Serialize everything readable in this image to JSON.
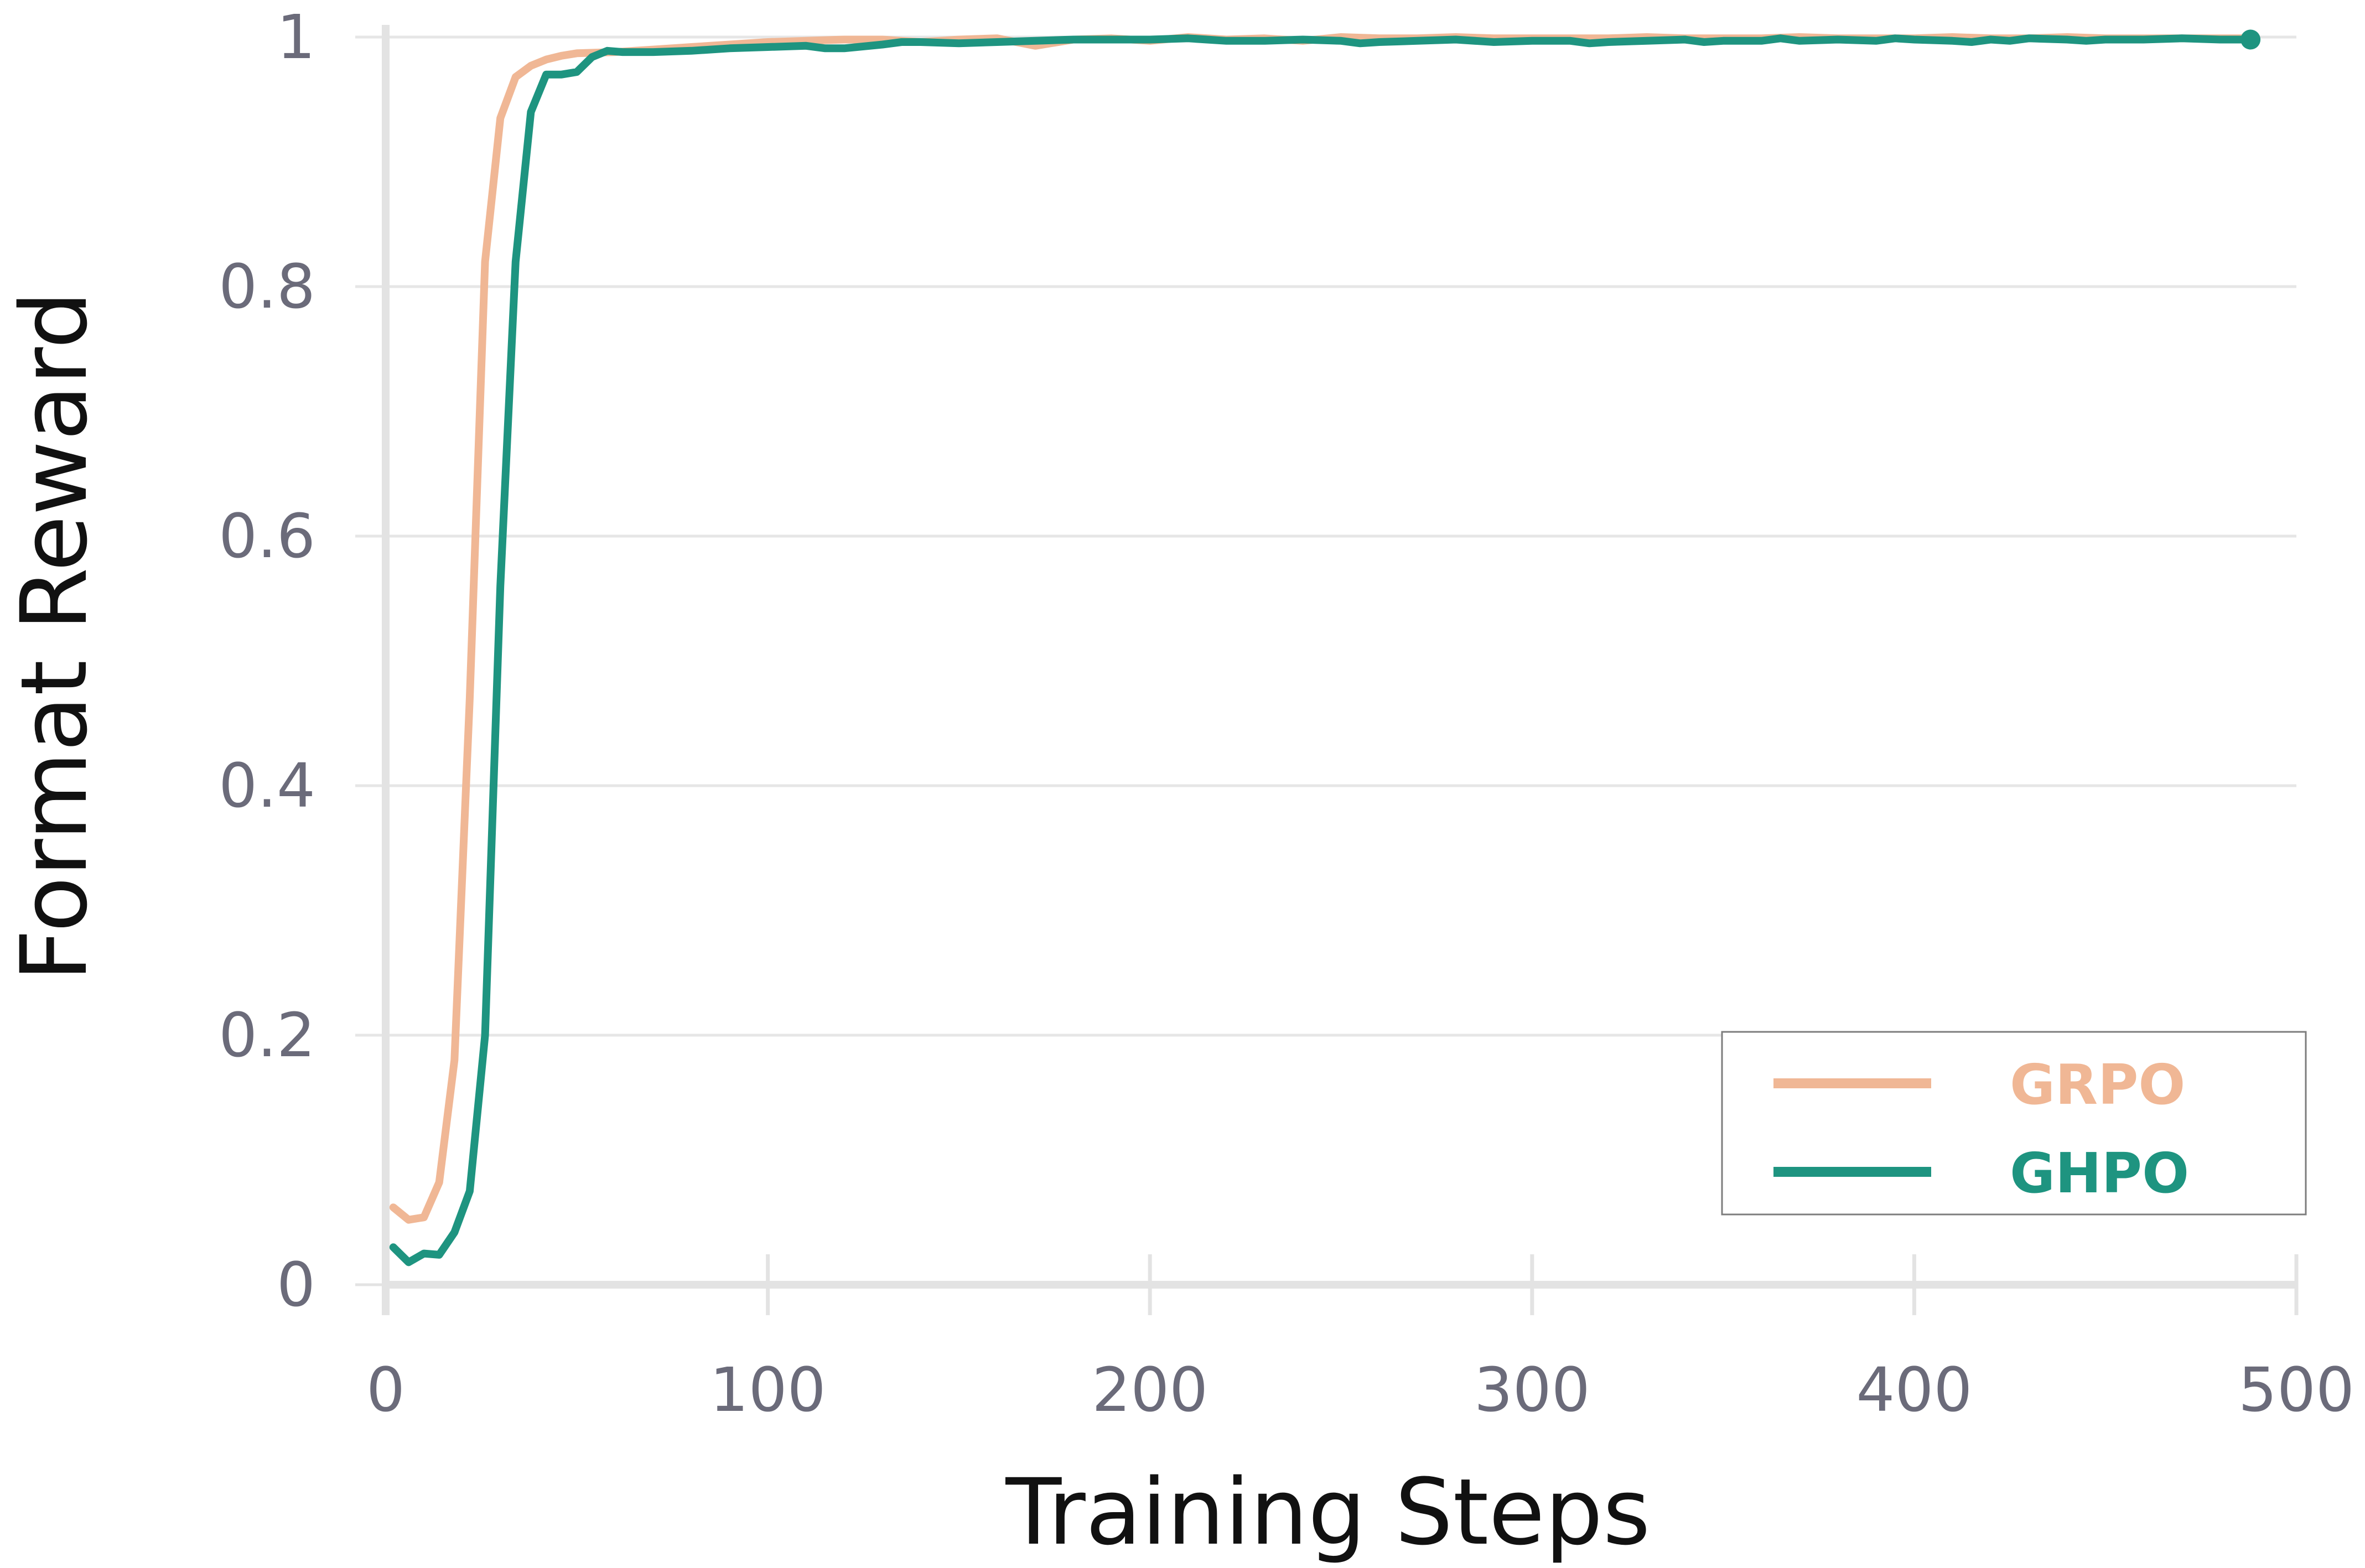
{
  "chart_data": {
    "type": "line",
    "title": "",
    "xlabel": "Training Steps",
    "ylabel": "Format Reward",
    "xlim": [
      0,
      500
    ],
    "ylim": [
      0,
      1
    ],
    "x_ticks": [
      "0",
      "100",
      "200",
      "300",
      "400",
      "500"
    ],
    "y_ticks": [
      "0",
      "0.2",
      "0.4",
      "0.6",
      "0.8",
      "1"
    ],
    "grid": "horizontal",
    "legend_position": "bottom-right",
    "series": [
      {
        "name": "GRPO",
        "color": "#F0B795",
        "points": [
          [
            2,
            0.062
          ],
          [
            6,
            0.052
          ],
          [
            10,
            0.054
          ],
          [
            14,
            0.082
          ],
          [
            18,
            0.18
          ],
          [
            22,
            0.47
          ],
          [
            26,
            0.82
          ],
          [
            30,
            0.935
          ],
          [
            34,
            0.968
          ],
          [
            38,
            0.977
          ],
          [
            42,
            0.982
          ],
          [
            46,
            0.985
          ],
          [
            50,
            0.987
          ],
          [
            60,
            0.988
          ],
          [
            70,
            0.99
          ],
          [
            80,
            0.992
          ],
          [
            90,
            0.994
          ],
          [
            100,
            0.996
          ],
          [
            110,
            0.997
          ],
          [
            120,
            0.998
          ],
          [
            130,
            0.998
          ],
          [
            140,
            0.996
          ],
          [
            150,
            0.998
          ],
          [
            160,
            0.999
          ],
          [
            170,
            0.993
          ],
          [
            180,
            0.998
          ],
          [
            190,
            0.999
          ],
          [
            200,
            0.997
          ],
          [
            210,
            1.0
          ],
          [
            220,
            0.998
          ],
          [
            230,
            0.999
          ],
          [
            240,
            0.997
          ],
          [
            250,
            1.0
          ],
          [
            260,
            0.999
          ],
          [
            270,
            0.999
          ],
          [
            280,
            1.0
          ],
          [
            290,
            0.999
          ],
          [
            300,
            0.999
          ],
          [
            310,
            0.999
          ],
          [
            320,
            0.999
          ],
          [
            330,
            1.0
          ],
          [
            340,
            0.999
          ],
          [
            350,
            0.999
          ],
          [
            360,
            0.999
          ],
          [
            370,
            1.0
          ],
          [
            380,
            0.999
          ],
          [
            390,
            0.999
          ],
          [
            400,
            0.999
          ],
          [
            410,
            1.0
          ],
          [
            420,
            0.999
          ],
          [
            430,
            0.999
          ],
          [
            440,
            1.0
          ],
          [
            450,
            0.999
          ],
          [
            460,
            0.999
          ],
          [
            470,
            0.999
          ],
          [
            480,
            0.999
          ],
          [
            488,
            0.999
          ]
        ]
      },
      {
        "name": "GHPO",
        "color": "#1E9480",
        "points": [
          [
            2,
            0.03
          ],
          [
            6,
            0.018
          ],
          [
            10,
            0.025
          ],
          [
            14,
            0.024
          ],
          [
            18,
            0.042
          ],
          [
            22,
            0.075
          ],
          [
            26,
            0.2
          ],
          [
            30,
            0.56
          ],
          [
            34,
            0.82
          ],
          [
            38,
            0.94
          ],
          [
            42,
            0.97
          ],
          [
            46,
            0.97
          ],
          [
            50,
            0.972
          ],
          [
            54,
            0.984
          ],
          [
            58,
            0.989
          ],
          [
            62,
            0.988
          ],
          [
            70,
            0.988
          ],
          [
            80,
            0.989
          ],
          [
            90,
            0.991
          ],
          [
            100,
            0.992
          ],
          [
            110,
            0.993
          ],
          [
            115,
            0.991
          ],
          [
            120,
            0.991
          ],
          [
            130,
            0.994
          ],
          [
            135,
            0.996
          ],
          [
            140,
            0.996
          ],
          [
            150,
            0.995
          ],
          [
            160,
            0.996
          ],
          [
            170,
            0.997
          ],
          [
            180,
            0.998
          ],
          [
            190,
            0.998
          ],
          [
            200,
            0.998
          ],
          [
            210,
            0.999
          ],
          [
            220,
            0.997
          ],
          [
            230,
            0.997
          ],
          [
            240,
            0.998
          ],
          [
            250,
            0.997
          ],
          [
            255,
            0.995
          ],
          [
            260,
            0.996
          ],
          [
            270,
            0.997
          ],
          [
            280,
            0.998
          ],
          [
            290,
            0.996
          ],
          [
            300,
            0.997
          ],
          [
            310,
            0.997
          ],
          [
            315,
            0.995
          ],
          [
            320,
            0.996
          ],
          [
            330,
            0.997
          ],
          [
            340,
            0.998
          ],
          [
            345,
            0.996
          ],
          [
            350,
            0.997
          ],
          [
            360,
            0.997
          ],
          [
            365,
            0.999
          ],
          [
            370,
            0.997
          ],
          [
            380,
            0.998
          ],
          [
            390,
            0.997
          ],
          [
            395,
            0.999
          ],
          [
            400,
            0.998
          ],
          [
            410,
            0.997
          ],
          [
            415,
            0.996
          ],
          [
            420,
            0.998
          ],
          [
            425,
            0.997
          ],
          [
            430,
            0.999
          ],
          [
            440,
            0.998
          ],
          [
            445,
            0.997
          ],
          [
            450,
            0.998
          ],
          [
            460,
            0.998
          ],
          [
            470,
            0.999
          ],
          [
            480,
            0.998
          ],
          [
            488,
            0.998
          ]
        ],
        "end_marker": true
      }
    ]
  },
  "legend": {
    "items": [
      {
        "label": "GRPO",
        "color": "#F0B795"
      },
      {
        "label": "GHPO",
        "color": "#1E9480"
      }
    ]
  }
}
